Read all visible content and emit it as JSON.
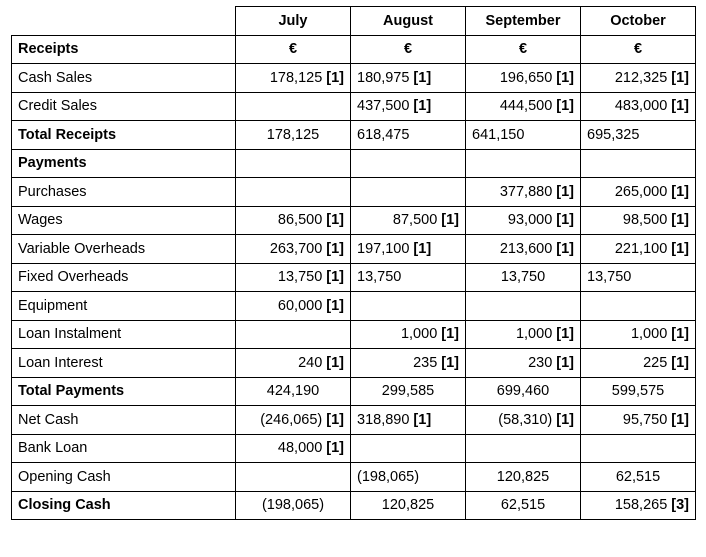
{
  "header": {
    "columns": [
      "July",
      "August",
      "September",
      "October"
    ]
  },
  "rows": [
    {
      "label": "Receipts",
      "bold": true,
      "cells": [
        {
          "v": "€",
          "m": "",
          "a": "center",
          "b": true
        },
        {
          "v": "€",
          "m": "",
          "a": "center",
          "b": true
        },
        {
          "v": "€",
          "m": "",
          "a": "center",
          "b": true
        },
        {
          "v": "€",
          "m": "",
          "a": "center",
          "b": true
        }
      ]
    },
    {
      "label": "Cash Sales",
      "bold": false,
      "cells": [
        {
          "v": "178,125",
          "m": "[1]",
          "a": "right"
        },
        {
          "v": "180,975",
          "m": "[1]",
          "a": "left"
        },
        {
          "v": "196,650",
          "m": "[1]",
          "a": "right"
        },
        {
          "v": "212,325",
          "m": "[1]",
          "a": "right"
        }
      ]
    },
    {
      "label": "Credit Sales",
      "bold": false,
      "cells": [
        {
          "v": "",
          "m": "",
          "a": "left"
        },
        {
          "v": "437,500",
          "m": "[1]",
          "a": "left"
        },
        {
          "v": "444,500",
          "m": "[1]",
          "a": "right"
        },
        {
          "v": "483,000",
          "m": "[1]",
          "a": "right"
        }
      ]
    },
    {
      "label": "Total Receipts",
      "bold": true,
      "cells": [
        {
          "v": "178,125",
          "m": "",
          "a": "center"
        },
        {
          "v": "618,475",
          "m": "",
          "a": "left"
        },
        {
          "v": "641,150",
          "m": "",
          "a": "left"
        },
        {
          "v": "695,325",
          "m": "",
          "a": "left"
        }
      ]
    },
    {
      "label": "Payments",
      "bold": true,
      "cells": [
        {
          "v": "",
          "m": "",
          "a": "left"
        },
        {
          "v": "",
          "m": "",
          "a": "left"
        },
        {
          "v": "",
          "m": "",
          "a": "left"
        },
        {
          "v": "",
          "m": "",
          "a": "left"
        }
      ]
    },
    {
      "label": "Purchases",
      "bold": false,
      "cells": [
        {
          "v": "",
          "m": "",
          "a": "left"
        },
        {
          "v": "",
          "m": "",
          "a": "left"
        },
        {
          "v": "377,880",
          "m": "[1]",
          "a": "right"
        },
        {
          "v": "265,000",
          "m": "[1]",
          "a": "right"
        }
      ]
    },
    {
      "label": "Wages",
      "bold": false,
      "cells": [
        {
          "v": "86,500",
          "m": "[1]",
          "a": "right"
        },
        {
          "v": "87,500",
          "m": "[1]",
          "a": "right"
        },
        {
          "v": "93,000",
          "m": "[1]",
          "a": "right"
        },
        {
          "v": "98,500",
          "m": "[1]",
          "a": "right"
        }
      ]
    },
    {
      "label": "Variable Overheads",
      "bold": false,
      "cells": [
        {
          "v": "263,700",
          "m": "[1]",
          "a": "right"
        },
        {
          "v": "197,100",
          "m": "[1]",
          "a": "left"
        },
        {
          "v": "213,600",
          "m": "[1]",
          "a": "right"
        },
        {
          "v": "221,100",
          "m": "[1]",
          "a": "right"
        }
      ]
    },
    {
      "label": "Fixed Overheads",
      "bold": false,
      "cells": [
        {
          "v": "13,750",
          "m": "[1]",
          "a": "right"
        },
        {
          "v": "13,750",
          "m": "",
          "a": "left"
        },
        {
          "v": "13,750",
          "m": "",
          "a": "center"
        },
        {
          "v": "13,750",
          "m": "",
          "a": "left"
        }
      ]
    },
    {
      "label": "Equipment",
      "bold": false,
      "cells": [
        {
          "v": "60,000",
          "m": "[1]",
          "a": "right"
        },
        {
          "v": "",
          "m": "",
          "a": "left"
        },
        {
          "v": "",
          "m": "",
          "a": "left"
        },
        {
          "v": "",
          "m": "",
          "a": "left"
        }
      ]
    },
    {
      "label": "Loan Instalment",
      "bold": false,
      "cells": [
        {
          "v": "",
          "m": "",
          "a": "left"
        },
        {
          "v": "1,000",
          "m": "[1]",
          "a": "right"
        },
        {
          "v": "1,000",
          "m": "[1]",
          "a": "right"
        },
        {
          "v": "1,000",
          "m": "[1]",
          "a": "right"
        }
      ]
    },
    {
      "label": "Loan Interest",
      "bold": false,
      "cells": [
        {
          "v": "240",
          "m": "[1]",
          "a": "right"
        },
        {
          "v": "235",
          "m": "[1]",
          "a": "right"
        },
        {
          "v": "230",
          "m": "[1]",
          "a": "right"
        },
        {
          "v": "225",
          "m": "[1]",
          "a": "right"
        }
      ]
    },
    {
      "label": "Total Payments",
      "bold": true,
      "cells": [
        {
          "v": "424,190",
          "m": "",
          "a": "center"
        },
        {
          "v": "299,585",
          "m": "",
          "a": "center"
        },
        {
          "v": "699,460",
          "m": "",
          "a": "center"
        },
        {
          "v": "599,575",
          "m": "",
          "a": "center"
        }
      ]
    },
    {
      "label": "Net Cash",
      "bold": false,
      "cells": [
        {
          "v": "(246,065)",
          "m": "[1]",
          "a": "right"
        },
        {
          "v": "318,890",
          "m": "[1]",
          "a": "left"
        },
        {
          "v": "(58,310)",
          "m": "[1]",
          "a": "right"
        },
        {
          "v": "95,750",
          "m": "[1]",
          "a": "right"
        }
      ]
    },
    {
      "label": "Bank Loan",
      "bold": false,
      "cells": [
        {
          "v": "48,000",
          "m": "[1]",
          "a": "right"
        },
        {
          "v": "",
          "m": "",
          "a": "left"
        },
        {
          "v": "",
          "m": "",
          "a": "left"
        },
        {
          "v": "",
          "m": "",
          "a": "left"
        }
      ]
    },
    {
      "label": "Opening Cash",
      "bold": false,
      "cells": [
        {
          "v": "",
          "m": "",
          "a": "left"
        },
        {
          "v": "(198,065)",
          "m": "",
          "a": "left"
        },
        {
          "v": "120,825",
          "m": "",
          "a": "center"
        },
        {
          "v": "62,515",
          "m": "",
          "a": "center"
        }
      ]
    },
    {
      "label": "Closing Cash",
      "bold": true,
      "cells": [
        {
          "v": "(198,065)",
          "m": "",
          "a": "center"
        },
        {
          "v": "120,825",
          "m": "",
          "a": "center"
        },
        {
          "v": "62,515",
          "m": "",
          "a": "center"
        },
        {
          "v": "158,265",
          "m": "[3]",
          "a": "right"
        }
      ]
    }
  ]
}
